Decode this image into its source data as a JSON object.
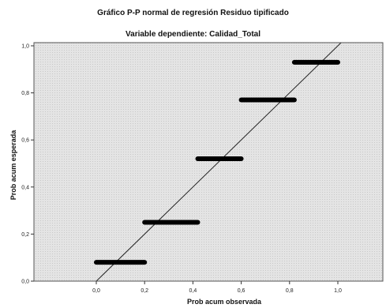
{
  "chart_data": {
    "type": "scatter",
    "title": "Gráfico P-P normal de regresión Residuo tipificado",
    "subtitle": "Variable dependiente: Calidad_Total",
    "xlabel": "Prob acum observada",
    "ylabel": "Prob acum esperada",
    "xlim": [
      0,
      1
    ],
    "ylim": [
      0,
      1
    ],
    "x_tick_labels": [
      "0,0",
      "0,2",
      "0,4",
      "0,6",
      "0,8",
      "1,0"
    ],
    "y_tick_labels": [
      "0,0",
      "0,2",
      "0,4",
      "0,6",
      "0,8",
      "1,0"
    ],
    "grid": false,
    "background": "#e6e6e6",
    "marker_color": "#000000",
    "reference_line": {
      "x": [
        0,
        1
      ],
      "y": [
        0,
        1
      ]
    },
    "series": [
      {
        "segments": [
          {
            "x_start": 0.0,
            "x_end": 0.2,
            "y": 0.08
          },
          {
            "x_start": 0.2,
            "x_end": 0.42,
            "y": 0.25
          },
          {
            "x_start": 0.42,
            "x_end": 0.6,
            "y": 0.52
          },
          {
            "x_start": 0.6,
            "x_end": 0.82,
            "y": 0.77
          },
          {
            "x_start": 0.82,
            "x_end": 1.0,
            "y": 0.93
          }
        ]
      }
    ]
  }
}
